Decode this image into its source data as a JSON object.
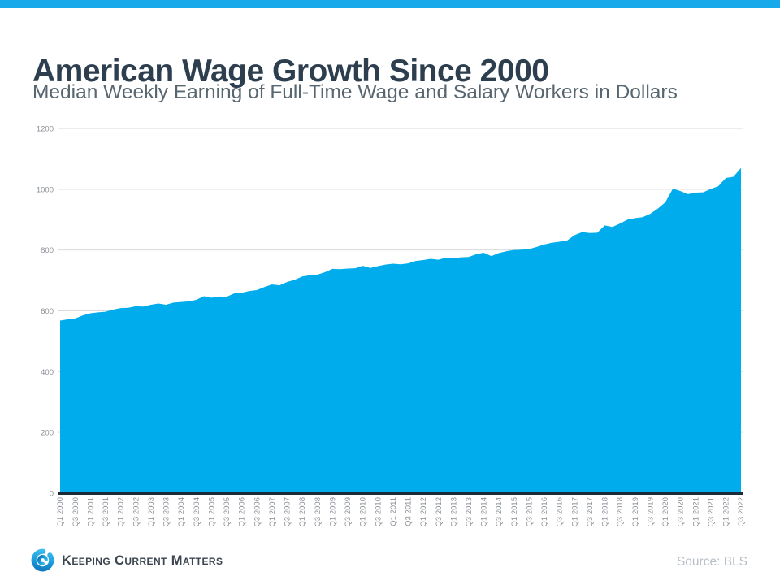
{
  "page": {
    "brand": "Keeping Current Matters",
    "source_label": "Source: BLS",
    "colors": {
      "topbar_blue": "#18a9ea",
      "area_blue": "#00acec",
      "axis_navy": "#1b2a38",
      "gridline_gray": "#d9d9d9",
      "tick_label_gray": "#8a9097",
      "title_navy": "#2d3e4e",
      "subtitle_slate": "#57666f"
    }
  },
  "chart_data": {
    "type": "area",
    "title": "American Wage Growth Since 2000",
    "subtitle": "Median Weekly Earning of Full-Time Wage and Salary Workers in Dollars",
    "xlabel": "",
    "ylabel": "",
    "ylim": [
      0,
      1200
    ],
    "y_ticks": [
      0,
      200,
      400,
      600,
      800,
      1000,
      1200
    ],
    "grid": true,
    "legend": "none",
    "x_label_every": 2,
    "categories": [
      "Q1 2000",
      "Q2 2000",
      "Q3 2000",
      "Q4 2000",
      "Q1 2001",
      "Q2 2001",
      "Q3 2001",
      "Q4 2001",
      "Q1 2002",
      "Q2 2002",
      "Q3 2002",
      "Q4 2002",
      "Q1 2003",
      "Q2 2003",
      "Q3 2003",
      "Q4 2003",
      "Q1 2004",
      "Q2 2004",
      "Q3 2004",
      "Q4 2004",
      "Q1 2005",
      "Q2 2005",
      "Q3 2005",
      "Q4 2005",
      "Q1 2006",
      "Q2 2006",
      "Q3 2006",
      "Q4 2006",
      "Q1 2007",
      "Q2 2007",
      "Q3 2007",
      "Q4 2007",
      "Q1 2008",
      "Q2 2008",
      "Q3 2008",
      "Q4 2008",
      "Q1 2009",
      "Q2 2009",
      "Q3 2009",
      "Q4 2009",
      "Q1 2010",
      "Q2 2010",
      "Q3 2010",
      "Q4 2010",
      "Q1 2011",
      "Q2 2011",
      "Q3 2011",
      "Q4 2011",
      "Q1 2012",
      "Q2 2012",
      "Q3 2012",
      "Q4 2012",
      "Q1 2013",
      "Q2 2013",
      "Q3 2013",
      "Q4 2013",
      "Q1 2014",
      "Q2 2014",
      "Q3 2014",
      "Q4 2014",
      "Q1 2015",
      "Q2 2015",
      "Q3 2015",
      "Q4 2015",
      "Q1 2016",
      "Q2 2016",
      "Q3 2016",
      "Q4 2016",
      "Q1 2017",
      "Q2 2017",
      "Q3 2017",
      "Q4 2017",
      "Q1 2018",
      "Q2 2018",
      "Q3 2018",
      "Q4 2018",
      "Q1 2019",
      "Q2 2019",
      "Q3 2019",
      "Q4 2019",
      "Q1 2020",
      "Q2 2020",
      "Q3 2020",
      "Q4 2020",
      "Q1 2021",
      "Q2 2021",
      "Q3 2021",
      "Q4 2021",
      "Q1 2022",
      "Q2 2022",
      "Q3 2022"
    ],
    "values": [
      568,
      572,
      575,
      585,
      592,
      595,
      597,
      604,
      609,
      610,
      615,
      614,
      620,
      624,
      620,
      627,
      629,
      631,
      636,
      648,
      643,
      647,
      646,
      657,
      659,
      665,
      668,
      678,
      687,
      684,
      695,
      702,
      713,
      717,
      719,
      727,
      738,
      737,
      739,
      740,
      748,
      741,
      747,
      752,
      755,
      753,
      756,
      764,
      767,
      771,
      768,
      775,
      773,
      776,
      777,
      786,
      791,
      780,
      790,
      796,
      800,
      801,
      803,
      810,
      818,
      824,
      827,
      831,
      849,
      859,
      856,
      857,
      881,
      876,
      887,
      900,
      905,
      908,
      919,
      936,
      957,
      1002,
      994,
      984,
      989,
      990,
      1001,
      1010,
      1037,
      1041,
      1070
    ]
  }
}
